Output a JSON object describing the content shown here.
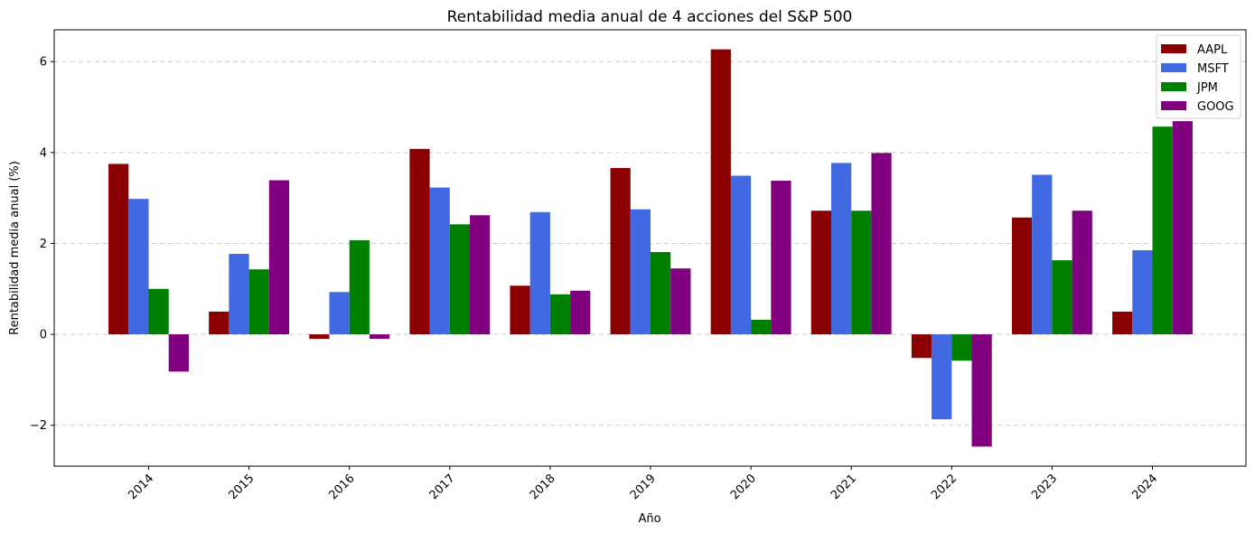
{
  "chart_data": {
    "type": "bar",
    "title": "Rentabilidad media anual de 4 acciones del S&P 500",
    "xlabel": "Año",
    "ylabel": "Rentabilidad media anual (%)",
    "categories": [
      "2014",
      "2015",
      "2016",
      "2017",
      "2018",
      "2019",
      "2020",
      "2021",
      "2022",
      "2023",
      "2024"
    ],
    "ylim": [
      -2.9,
      6.7
    ],
    "yticks": [
      -2,
      0,
      2,
      4,
      6
    ],
    "ytick_labels": [
      "−2",
      "0",
      "2",
      "4",
      "6"
    ],
    "grid": "y-dashed",
    "legend_position": "top-right",
    "series": [
      {
        "name": "AAPL",
        "color": "#8b0000",
        "values": [
          3.75,
          0.5,
          -0.1,
          4.08,
          1.07,
          3.66,
          6.27,
          2.72,
          -0.52,
          2.57,
          0.5
        ]
      },
      {
        "name": "MSFT",
        "color": "#4169e1",
        "values": [
          2.98,
          1.77,
          0.93,
          3.23,
          2.69,
          2.75,
          3.49,
          3.77,
          -1.87,
          3.51,
          1.85
        ]
      },
      {
        "name": "JPM",
        "color": "#008000",
        "values": [
          1.0,
          1.43,
          2.07,
          2.42,
          0.88,
          1.81,
          0.32,
          2.72,
          -0.58,
          1.63,
          4.57
        ]
      },
      {
        "name": "GOOG",
        "color": "#800080",
        "values": [
          -0.82,
          3.39,
          -0.1,
          2.62,
          0.96,
          1.45,
          3.38,
          3.99,
          -2.47,
          2.72,
          4.69
        ]
      }
    ]
  }
}
